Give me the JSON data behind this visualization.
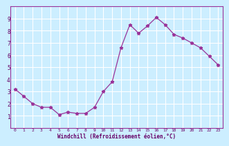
{
  "x": [
    0,
    1,
    2,
    3,
    4,
    5,
    6,
    7,
    8,
    9,
    10,
    11,
    12,
    13,
    14,
    15,
    16,
    17,
    18,
    19,
    20,
    21,
    22,
    23
  ],
  "y": [
    3.2,
    2.6,
    2.0,
    1.7,
    1.7,
    1.1,
    1.3,
    1.2,
    1.2,
    1.7,
    3.0,
    3.8,
    6.6,
    8.5,
    7.8,
    8.4,
    9.1,
    8.5,
    7.7,
    7.4,
    7.0,
    6.6,
    5.9,
    5.2
  ],
  "xlim": [
    -0.5,
    23.5
  ],
  "ylim": [
    0,
    10
  ],
  "xticks": [
    0,
    1,
    2,
    3,
    4,
    5,
    6,
    7,
    8,
    9,
    10,
    11,
    12,
    13,
    14,
    15,
    16,
    17,
    18,
    19,
    20,
    21,
    22,
    23
  ],
  "yticks": [
    1,
    2,
    3,
    4,
    5,
    6,
    7,
    8,
    9
  ],
  "xlabel": "Windchill (Refroidissement éolien,°C)",
  "line_color": "#993399",
  "marker": "*",
  "bg_color": "#cceeff",
  "grid_color": "#ffffff",
  "tick_color": "#660066",
  "xlabel_color": "#660066"
}
